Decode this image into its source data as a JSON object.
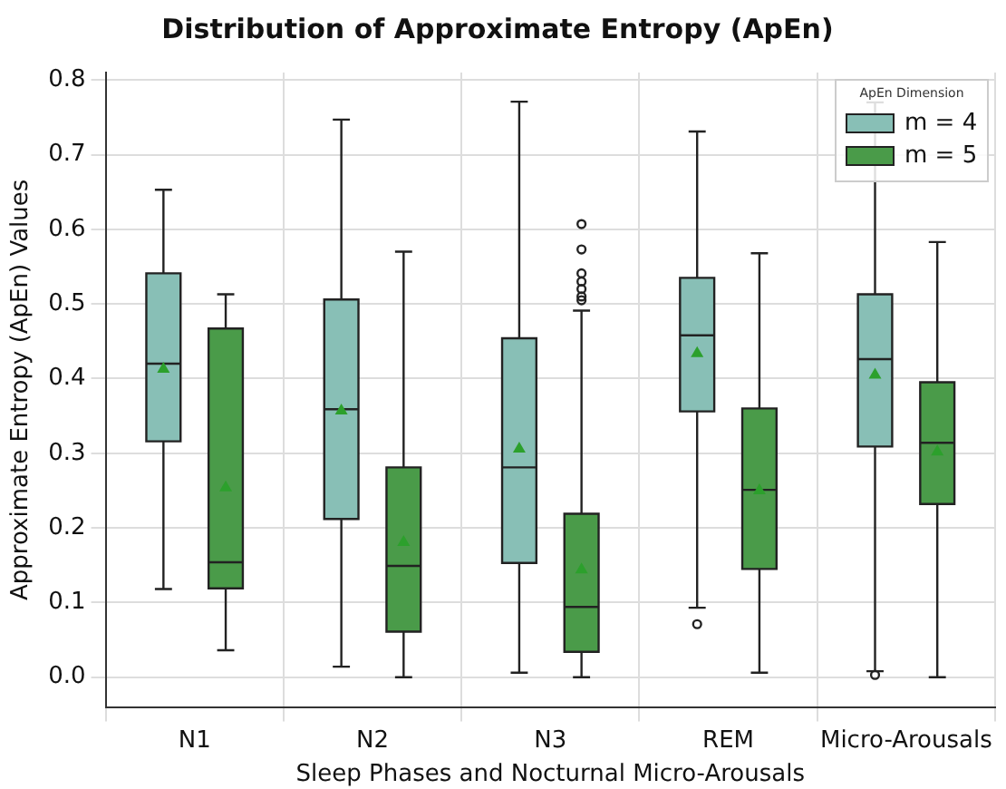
{
  "chart_data": {
    "type": "box",
    "title": "Distribution of Approximate Entropy (ApEn)",
    "xlabel": "Sleep Phases and Nocturnal Micro-Arousals",
    "ylabel": "Approximate Entropy (ApEn) Values",
    "legend_title": "ApEn Dimension",
    "legend": "top right",
    "grid": true,
    "categories": [
      "N1",
      "N2",
      "N3",
      "REM",
      "Micro-Arousals"
    ],
    "ylim": [
      -0.04,
      0.81
    ],
    "yticks": [
      {
        "value": 0,
        "label": "0.0"
      },
      {
        "value": 0.1,
        "label": "0.1"
      },
      {
        "value": 0.2,
        "label": "0.2"
      },
      {
        "value": 0.3,
        "label": "0.3"
      },
      {
        "value": 0.4,
        "label": "0.4"
      },
      {
        "value": 0.5,
        "label": "0.5"
      },
      {
        "value": 0.6,
        "label": "0.6"
      },
      {
        "value": 0.7,
        "label": "0.7"
      },
      {
        "value": 0.8,
        "label": "0.8"
      }
    ],
    "series": [
      {
        "name": "m = 4",
        "color": "#88bfb6",
        "boxes": [
          {
            "low": 0.118,
            "q1": 0.316,
            "median": 0.42,
            "q3": 0.541,
            "high": 0.653,
            "mean": 0.414
          },
          {
            "low": 0.014,
            "q1": 0.212,
            "median": 0.359,
            "q3": 0.506,
            "high": 0.747,
            "mean": 0.358
          },
          {
            "low": 0.006,
            "q1": 0.153,
            "median": 0.281,
            "q3": 0.454,
            "high": 0.771,
            "mean": 0.307
          },
          {
            "low": 0.093,
            "q1": 0.356,
            "median": 0.458,
            "q3": 0.535,
            "high": 0.731,
            "mean": 0.435,
            "outliers": [
              0.071
            ]
          },
          {
            "low": 0.008,
            "q1": 0.309,
            "median": 0.426,
            "q3": 0.513,
            "high": 0.77,
            "mean": 0.406,
            "outliers": [
              0.003
            ]
          }
        ]
      },
      {
        "name": "m = 5",
        "color": "#4a9b49",
        "boxes": [
          {
            "low": 0.036,
            "q1": 0.119,
            "median": 0.154,
            "q3": 0.467,
            "high": 0.513,
            "mean": 0.255
          },
          {
            "low": 0,
            "q1": 0.061,
            "median": 0.149,
            "q3": 0.281,
            "high": 0.57,
            "mean": 0.182
          },
          {
            "low": 0,
            "q1": 0.034,
            "median": 0.094,
            "q3": 0.219,
            "high": 0.491,
            "mean": 0.145,
            "outliers": [
              0.607,
              0.573,
              0.541,
              0.53,
              0.52,
              0.51,
              0.505
            ]
          },
          {
            "low": 0.006,
            "q1": 0.145,
            "median": 0.251,
            "q3": 0.36,
            "high": 0.568,
            "mean": 0.251
          },
          {
            "low": 0,
            "q1": 0.232,
            "median": 0.314,
            "q3": 0.395,
            "high": 0.583,
            "mean": 0.303
          }
        ]
      }
    ]
  }
}
